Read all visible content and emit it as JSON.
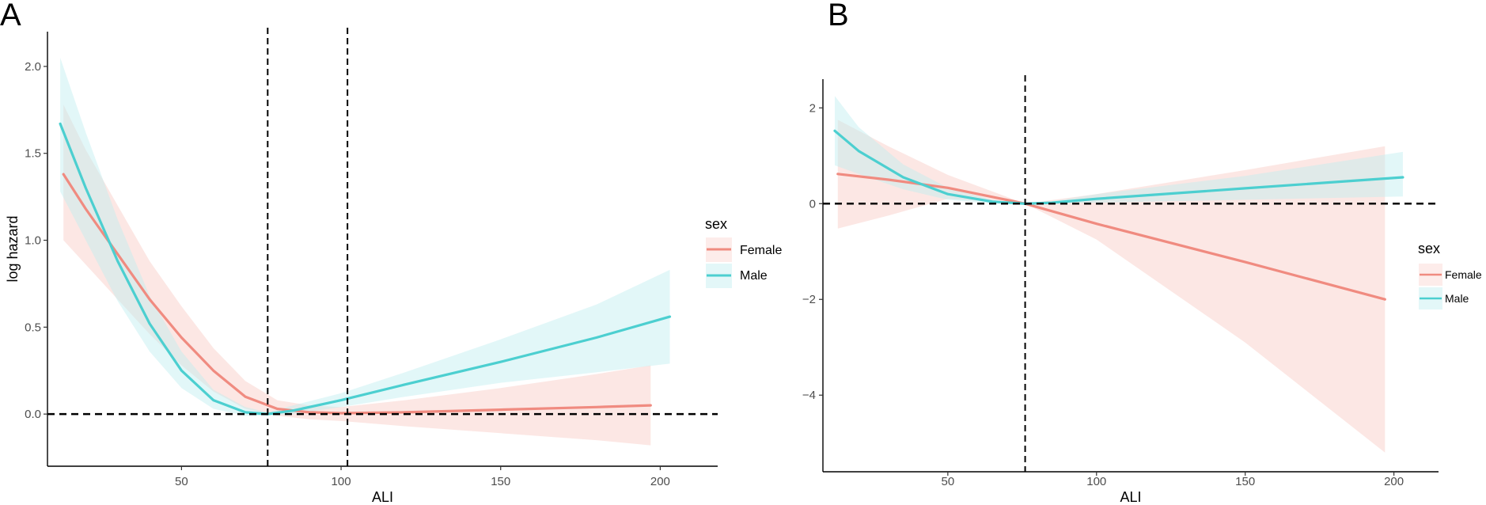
{
  "figure": {
    "panel_a_label": "A",
    "panel_b_label": "B"
  },
  "colors": {
    "female": "#f08b80",
    "female_band": "#f9c9c4",
    "male": "#4ccfd0",
    "male_band": "#bfeef0",
    "axis": "#000000"
  },
  "chart_data": [
    {
      "panel": "A",
      "type": "line",
      "title": "",
      "xlabel": "ALI",
      "ylabel": "log hazard",
      "xlim": [
        8,
        218
      ],
      "ylim": [
        -0.3,
        2.2
      ],
      "xticks": [
        50,
        100,
        150,
        200
      ],
      "xtick_labels": [
        "50",
        "100",
        "150",
        "200"
      ],
      "yticks": [
        0,
        0.5,
        1,
        1.5,
        2
      ],
      "ytick_labels": [
        "0.0",
        "0.5",
        "1.0",
        "1.5",
        "2.0"
      ],
      "vlines": [
        77,
        102
      ],
      "hline": 0,
      "legend": {
        "title": "sex",
        "entries": [
          "Female",
          "Male"
        ]
      },
      "series": [
        {
          "name": "Female",
          "x": [
            13,
            20,
            30,
            40,
            50,
            60,
            70,
            80,
            90,
            100,
            120,
            150,
            180,
            197
          ],
          "y": [
            1.38,
            1.18,
            0.92,
            0.66,
            0.44,
            0.25,
            0.1,
            0.03,
            0.01,
            0.005,
            0.01,
            0.025,
            0.04,
            0.05
          ],
          "lower": [
            1.0,
            0.86,
            0.66,
            0.46,
            0.28,
            0.13,
            0.03,
            -0.01,
            -0.03,
            -0.04,
            -0.07,
            -0.11,
            -0.15,
            -0.18
          ],
          "upper": [
            1.78,
            1.52,
            1.2,
            0.88,
            0.62,
            0.38,
            0.19,
            0.08,
            0.05,
            0.04,
            0.08,
            0.15,
            0.23,
            0.28
          ]
        },
        {
          "name": "Male",
          "x": [
            12,
            20,
            30,
            40,
            50,
            60,
            70,
            77,
            85,
            100,
            120,
            150,
            180,
            203
          ],
          "y": [
            1.67,
            1.3,
            0.88,
            0.52,
            0.25,
            0.08,
            0.01,
            0.0,
            0.02,
            0.08,
            0.17,
            0.3,
            0.44,
            0.56
          ],
          "lower": [
            1.28,
            1.0,
            0.65,
            0.36,
            0.15,
            0.03,
            -0.01,
            -0.01,
            0.0,
            0.04,
            0.1,
            0.18,
            0.24,
            0.29
          ],
          "upper": [
            2.05,
            1.62,
            1.12,
            0.68,
            0.36,
            0.14,
            0.04,
            0.01,
            0.05,
            0.12,
            0.24,
            0.43,
            0.63,
            0.83
          ]
        }
      ]
    },
    {
      "panel": "B",
      "type": "line",
      "title": "",
      "xlabel": "ALI",
      "ylabel": "",
      "xlim": [
        8,
        215
      ],
      "ylim": [
        -5.6,
        2.6
      ],
      "xticks": [
        50,
        100,
        150,
        200
      ],
      "xtick_labels": [
        "50",
        "100",
        "150",
        "200"
      ],
      "yticks": [
        -4,
        -2,
        0,
        2
      ],
      "ytick_labels": [
        "−4",
        "−2",
        "0",
        "2"
      ],
      "vlines": [
        76
      ],
      "hline": 0,
      "legend": {
        "title": "sex",
        "entries": [
          "Female",
          "Male"
        ]
      },
      "series": [
        {
          "name": "Female",
          "x": [
            13,
            30,
            50,
            76,
            100,
            150,
            197
          ],
          "y": [
            0.62,
            0.5,
            0.33,
            0.0,
            -0.42,
            -1.22,
            -2.0
          ],
          "lower": [
            -0.52,
            -0.25,
            0.1,
            0.0,
            -0.75,
            -2.9,
            -5.2
          ],
          "upper": [
            1.75,
            1.2,
            0.6,
            0.0,
            0.2,
            0.7,
            1.2
          ]
        },
        {
          "name": "Male",
          "x": [
            12,
            20,
            35,
            50,
            65,
            76,
            85,
            100,
            150,
            203
          ],
          "y": [
            1.52,
            1.1,
            0.55,
            0.2,
            0.04,
            0.0,
            0.02,
            0.1,
            0.32,
            0.55
          ],
          "lower": [
            0.8,
            0.62,
            0.3,
            0.08,
            0.0,
            0.0,
            0.0,
            0.02,
            0.08,
            0.15
          ],
          "upper": [
            2.25,
            1.6,
            0.82,
            0.33,
            0.08,
            0.0,
            0.05,
            0.2,
            0.58,
            1.08
          ]
        }
      ]
    }
  ]
}
